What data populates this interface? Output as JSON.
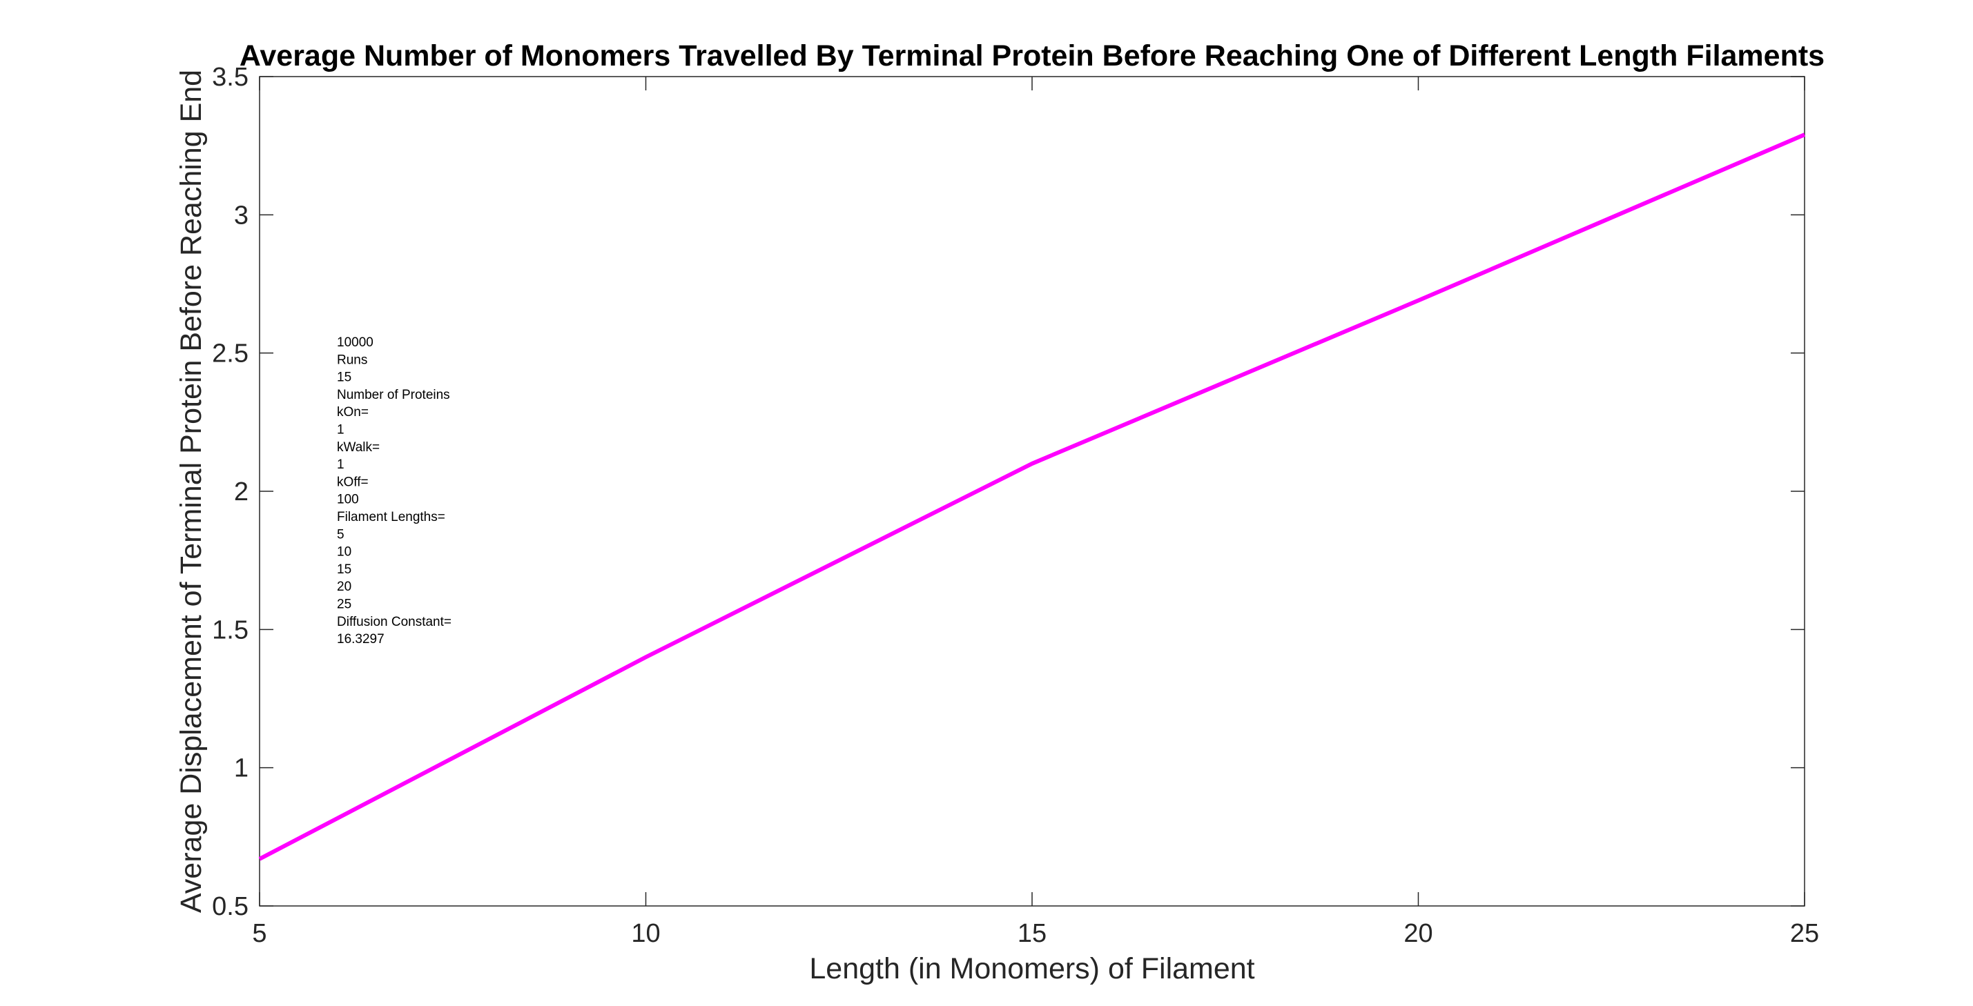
{
  "chart_data": {
    "type": "line",
    "title": "Average Number of Monomers Travelled By Terminal Protein Before Reaching One of Different Length Filaments",
    "xlabel": "Length (in Monomers) of Filament",
    "ylabel": "Average Displacement of Terminal Protein  Before Reaching End",
    "xlim": [
      5,
      25
    ],
    "ylim": [
      0.5,
      3.5
    ],
    "x_ticks": [
      5,
      10,
      15,
      20,
      25
    ],
    "x_tick_labels": [
      "5",
      "10",
      "15",
      "20",
      "25"
    ],
    "y_ticks": [
      0.5,
      1,
      1.5,
      2,
      2.5,
      3,
      3.5
    ],
    "y_tick_labels": [
      "0.5",
      "1",
      "1.5",
      "2",
      "2.5",
      "3",
      "3.5"
    ],
    "grid": false,
    "series": [
      {
        "color": "#ff00ff",
        "x": [
          5,
          10,
          15,
          20,
          25
        ],
        "values": [
          0.67,
          1.4,
          2.1,
          2.69,
          3.29
        ]
      }
    ],
    "annotation": [
      "10000",
      "Runs",
      "15",
      "Number of Proteins",
      "kOn=",
      "1",
      "kWalk=",
      "1",
      "kOff=",
      "100",
      "Filament Lengths=",
      "5",
      "10",
      "15",
      "20",
      "25",
      "Diffusion Constant=",
      "16.3297"
    ]
  }
}
